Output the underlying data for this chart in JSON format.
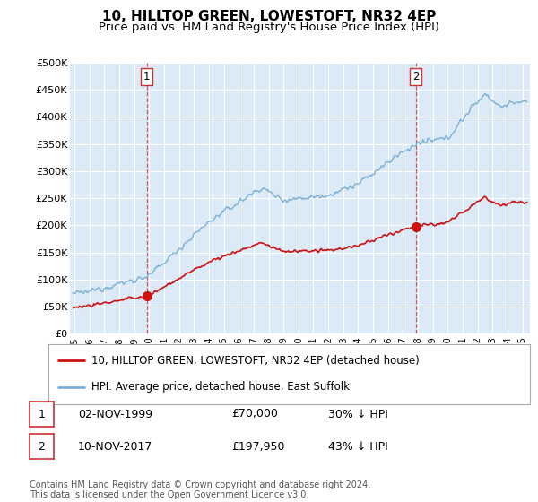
{
  "title": "10, HILLTOP GREEN, LOWESTOFT, NR32 4EP",
  "subtitle": "Price paid vs. HM Land Registry's House Price Index (HPI)",
  "ylabel_ticks": [
    "£0",
    "£50K",
    "£100K",
    "£150K",
    "£200K",
    "£250K",
    "£300K",
    "£350K",
    "£400K",
    "£450K",
    "£500K"
  ],
  "ytick_values": [
    0,
    50000,
    100000,
    150000,
    200000,
    250000,
    300000,
    350000,
    400000,
    450000,
    500000
  ],
  "ylim": [
    0,
    500000
  ],
  "xlim_start": 1994.7,
  "xlim_end": 2025.5,
  "plot_bg_color": "#dce9f7",
  "line_color_hpi": "#7bafd4",
  "line_color_property": "#cc1111",
  "grid_color": "#ffffff",
  "sale1_x": 1999.84,
  "sale1_y": 70000,
  "sale2_x": 2017.86,
  "sale2_y": 197950,
  "legend_label_property": "10, HILLTOP GREEN, LOWESTOFT, NR32 4EP (detached house)",
  "legend_label_hpi": "HPI: Average price, detached house, East Suffolk",
  "table_row1": [
    "1",
    "02-NOV-1999",
    "£70,000",
    "30% ↓ HPI"
  ],
  "table_row2": [
    "2",
    "10-NOV-2017",
    "£197,950",
    "43% ↓ HPI"
  ],
  "footnote": "Contains HM Land Registry data © Crown copyright and database right 2024.\nThis data is licensed under the Open Government Licence v3.0.",
  "title_fontsize": 11,
  "subtitle_fontsize": 9.5,
  "tick_fontsize": 8,
  "legend_fontsize": 8.5,
  "table_fontsize": 9
}
